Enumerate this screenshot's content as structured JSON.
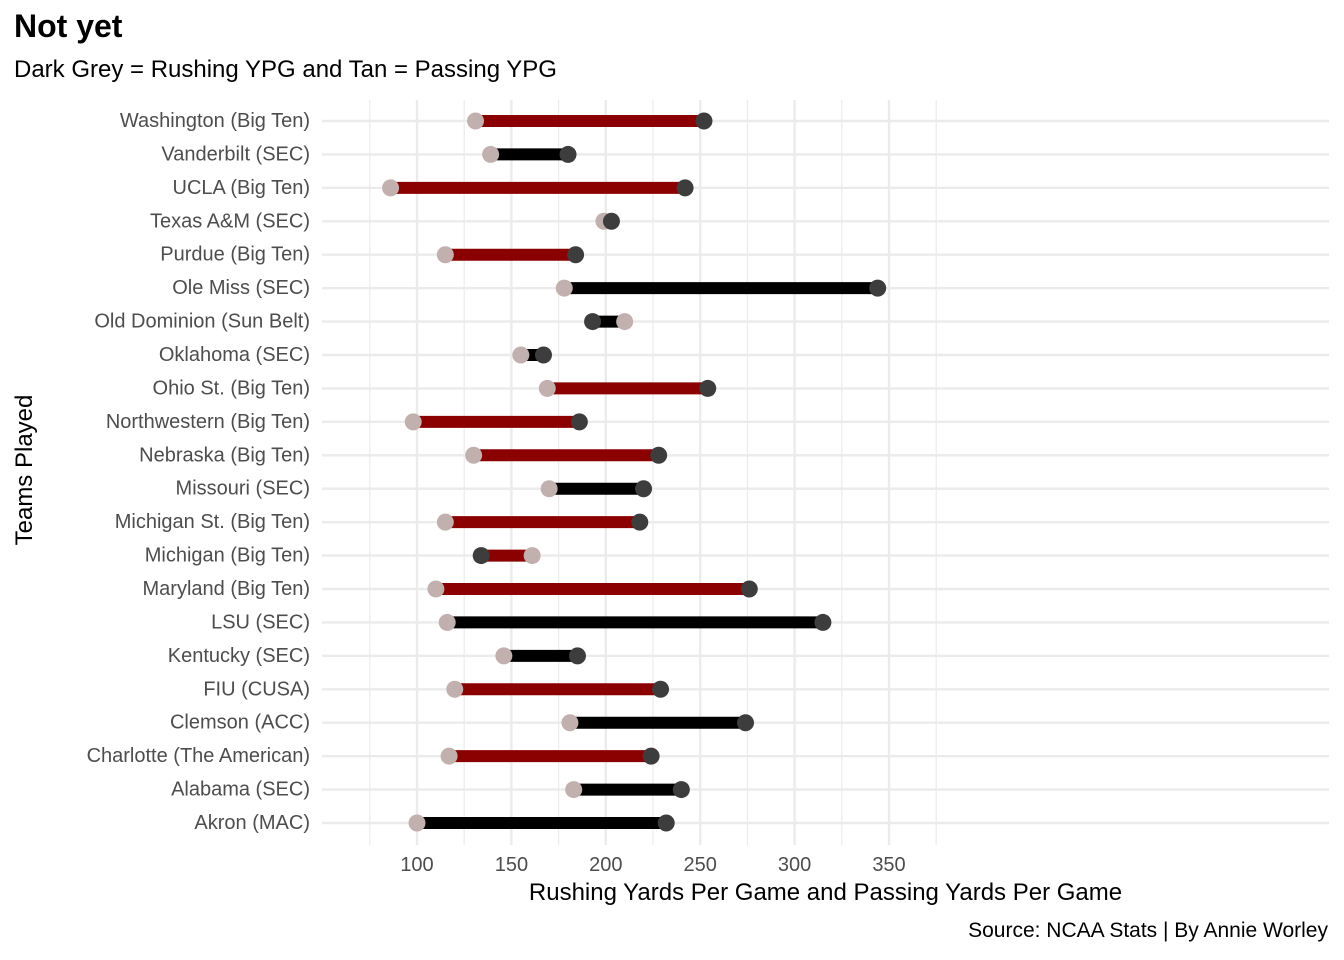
{
  "title": "Not yet",
  "subtitle": "Dark Grey = Rushing YPG and Tan = Passing YPG",
  "caption": "Source: NCAA Stats | By Annie Worley",
  "colors": {
    "rushing_point": "#3d3d3d",
    "passing_point": "#c2b0ae",
    "loss_bar": "#8b0000",
    "win_bar": "#000000",
    "grid": "#ebebeb",
    "tick_text": "#4d4d4d"
  },
  "chart_data": {
    "type": "dumbbell",
    "title": "Not yet",
    "subtitle": "Dark Grey = Rushing YPG and Tan = Passing YPG",
    "xlabel": "Rushing Yards Per Game and Passing Yards Per Game",
    "ylabel": "Teams Played",
    "xlim": [
      73,
      355
    ],
    "xticks": [
      100,
      150,
      200,
      250,
      300,
      350
    ],
    "grid": true,
    "legend": "none",
    "teams": [
      {
        "team": "Washington (Big Ten)",
        "rushing": 252,
        "passing": 131,
        "bar": "red"
      },
      {
        "team": "Vanderbilt (SEC)",
        "rushing": 180,
        "passing": 139,
        "bar": "black"
      },
      {
        "team": "UCLA (Big Ten)",
        "rushing": 242,
        "passing": 86,
        "bar": "red"
      },
      {
        "team": "Texas A&M (SEC)",
        "rushing": 203,
        "passing": 199,
        "bar": "red"
      },
      {
        "team": "Purdue (Big Ten)",
        "rushing": 184,
        "passing": 115,
        "bar": "red"
      },
      {
        "team": "Ole Miss (SEC)",
        "rushing": 344,
        "passing": 178,
        "bar": "black"
      },
      {
        "team": "Old Dominion (Sun Belt)",
        "rushing": 193,
        "passing": 210,
        "bar": "black"
      },
      {
        "team": "Oklahoma (SEC)",
        "rushing": 167,
        "passing": 155,
        "bar": "black"
      },
      {
        "team": "Ohio St. (Big Ten)",
        "rushing": 254,
        "passing": 169,
        "bar": "red"
      },
      {
        "team": "Northwestern (Big Ten)",
        "rushing": 186,
        "passing": 98,
        "bar": "red"
      },
      {
        "team": "Nebraska (Big Ten)",
        "rushing": 228,
        "passing": 130,
        "bar": "red"
      },
      {
        "team": "Missouri (SEC)",
        "rushing": 220,
        "passing": 170,
        "bar": "black"
      },
      {
        "team": "Michigan St. (Big Ten)",
        "rushing": 218,
        "passing": 115,
        "bar": "red"
      },
      {
        "team": "Michigan (Big Ten)",
        "rushing": 134,
        "passing": 161,
        "bar": "red"
      },
      {
        "team": "Maryland (Big Ten)",
        "rushing": 276,
        "passing": 110,
        "bar": "red"
      },
      {
        "team": "LSU (SEC)",
        "rushing": 315,
        "passing": 116,
        "bar": "black"
      },
      {
        "team": "Kentucky (SEC)",
        "rushing": 185,
        "passing": 146,
        "bar": "black"
      },
      {
        "team": "FIU (CUSA)",
        "rushing": 229,
        "passing": 120,
        "bar": "red"
      },
      {
        "team": "Clemson (ACC)",
        "rushing": 274,
        "passing": 181,
        "bar": "black"
      },
      {
        "team": "Charlotte (The American)",
        "rushing": 224,
        "passing": 117,
        "bar": "red"
      },
      {
        "team": "Alabama (SEC)",
        "rushing": 240,
        "passing": 183,
        "bar": "black"
      },
      {
        "team": "Akron (MAC)",
        "rushing": 232,
        "passing": 100,
        "bar": "black"
      }
    ]
  }
}
